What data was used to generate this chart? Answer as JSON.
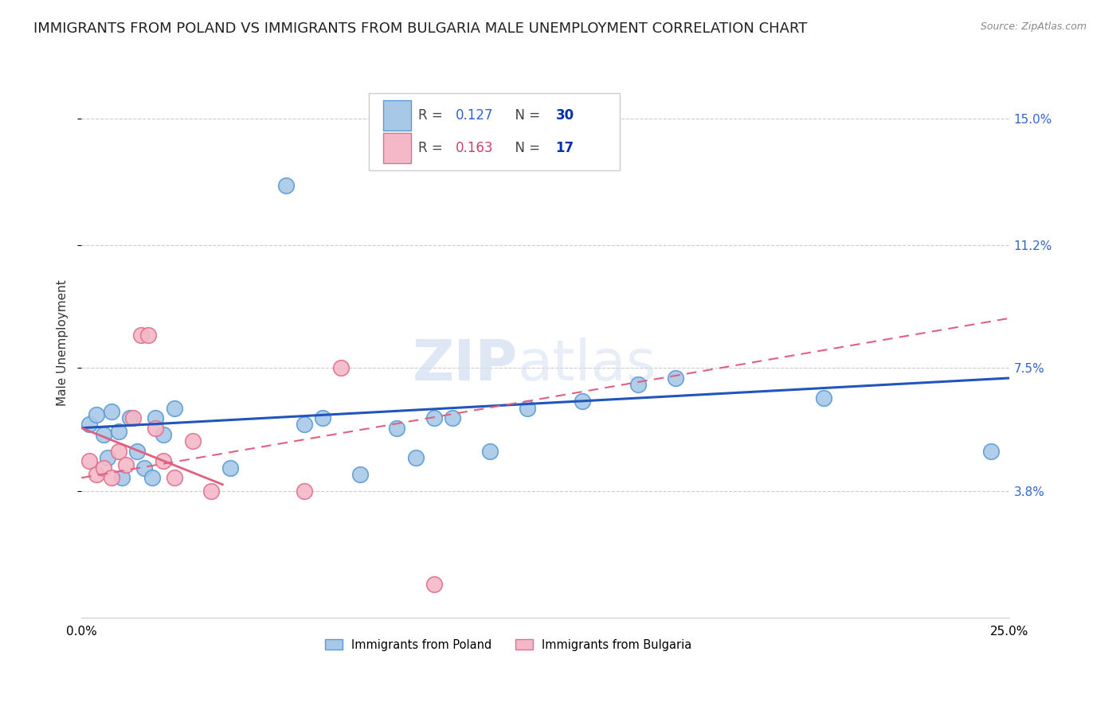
{
  "title": "IMMIGRANTS FROM POLAND VS IMMIGRANTS FROM BULGARIA MALE UNEMPLOYMENT CORRELATION CHART",
  "source": "Source: ZipAtlas.com",
  "ylabel": "Male Unemployment",
  "xlim": [
    0.0,
    0.25
  ],
  "ylim": [
    0.0,
    0.165
  ],
  "yticks": [
    0.038,
    0.075,
    0.112,
    0.15
  ],
  "ytick_labels": [
    "3.8%",
    "7.5%",
    "11.2%",
    "15.0%"
  ],
  "xticks": [
    0.0,
    0.05,
    0.1,
    0.15,
    0.2,
    0.25
  ],
  "xtick_labels": [
    "0.0%",
    "",
    "",
    "",
    "",
    "25.0%"
  ],
  "poland_color": "#a8c8e8",
  "poland_edge_color": "#5b9bd5",
  "bulgaria_color": "#f4b8c8",
  "bulgaria_edge_color": "#e07090",
  "trend_poland_color": "#2255bb",
  "trend_bulgaria_solid_color": "#e06080",
  "trend_bulgaria_dashed_color": "#e06080",
  "R_poland": 0.127,
  "N_poland": 30,
  "R_bulgaria": 0.163,
  "N_bulgaria": 17,
  "poland_x": [
    0.002,
    0.004,
    0.006,
    0.007,
    0.008,
    0.01,
    0.011,
    0.013,
    0.015,
    0.017,
    0.019,
    0.02,
    0.022,
    0.025,
    0.04,
    0.055,
    0.06,
    0.065,
    0.075,
    0.085,
    0.09,
    0.095,
    0.1,
    0.11,
    0.12,
    0.135,
    0.15,
    0.16,
    0.2,
    0.245
  ],
  "poland_y": [
    0.058,
    0.061,
    0.055,
    0.048,
    0.062,
    0.056,
    0.042,
    0.06,
    0.05,
    0.045,
    0.042,
    0.06,
    0.055,
    0.063,
    0.045,
    0.13,
    0.058,
    0.06,
    0.043,
    0.057,
    0.048,
    0.06,
    0.06,
    0.05,
    0.063,
    0.065,
    0.07,
    0.072,
    0.066,
    0.05
  ],
  "bulgaria_x": [
    0.002,
    0.004,
    0.006,
    0.008,
    0.01,
    0.012,
    0.014,
    0.016,
    0.018,
    0.02,
    0.022,
    0.025,
    0.03,
    0.035,
    0.06,
    0.07,
    0.095
  ],
  "bulgaria_y": [
    0.047,
    0.043,
    0.045,
    0.042,
    0.05,
    0.046,
    0.06,
    0.085,
    0.085,
    0.057,
    0.047,
    0.042,
    0.053,
    0.038,
    0.038,
    0.075,
    0.01
  ],
  "watermark_zip": "ZIP",
  "watermark_atlas": "atlas",
  "marker_size": 200,
  "title_fontsize": 13,
  "axis_label_fontsize": 11,
  "tick_fontsize": 11,
  "legend_R_color": "#3366cc",
  "legend_N_color": "#0033aa",
  "legend_R2_color": "#cc4466",
  "legend_N2_color": "#0033aa"
}
